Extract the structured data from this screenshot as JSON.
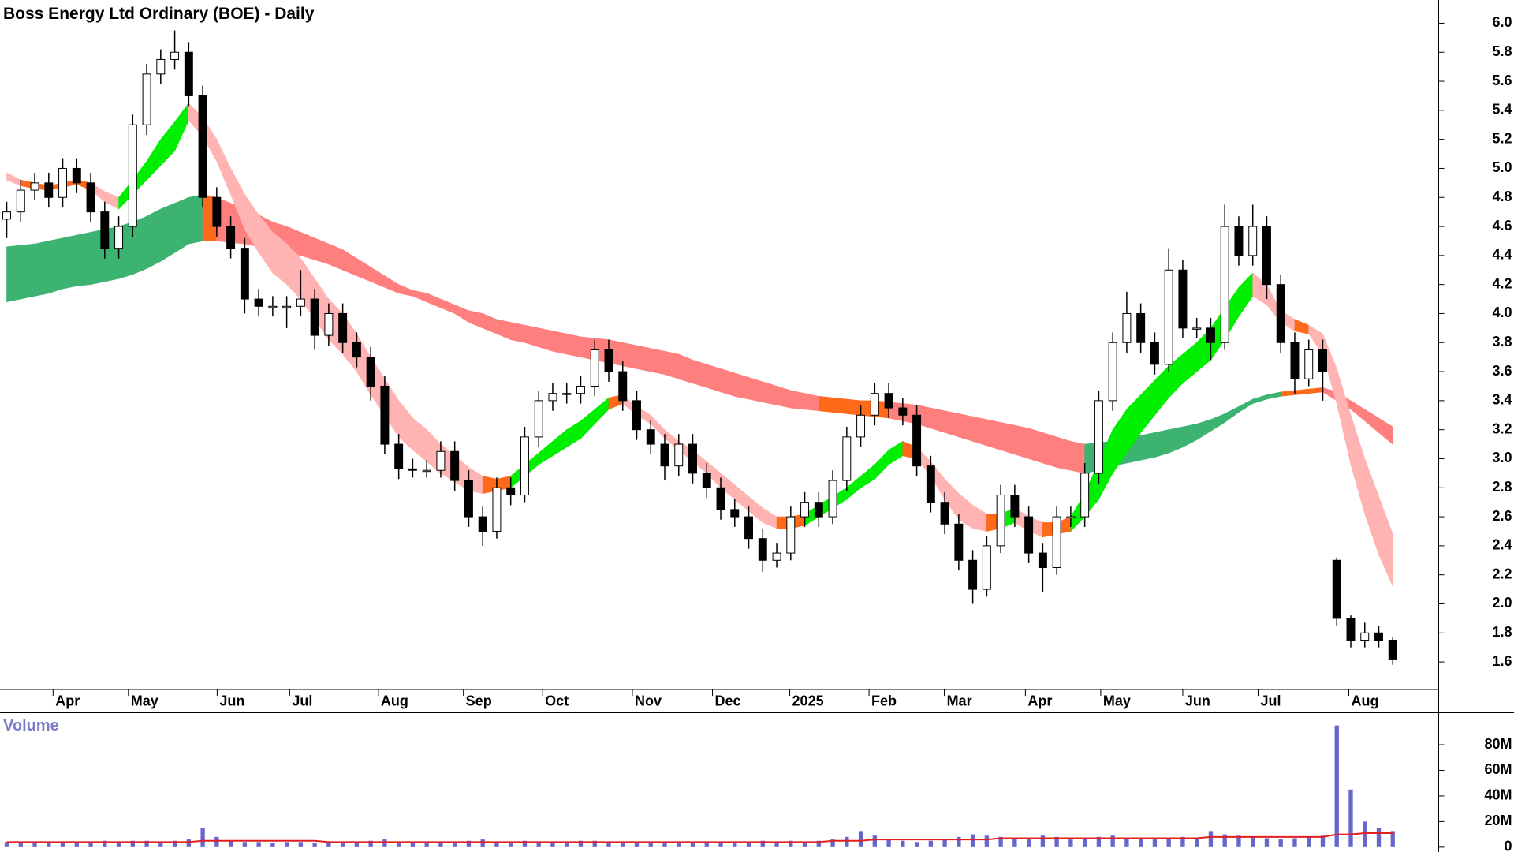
{
  "chart_data": {
    "type": "candlestick",
    "title": "Boss Energy Ltd Ordinary (BOE) - Daily",
    "volume_label": "Volume",
    "xlim": [
      -0.48,
      102.28
    ],
    "xticks": [
      {
        "value": 3.31,
        "label": "Apr"
      },
      {
        "value": 8.69,
        "label": "May"
      },
      {
        "value": 15.03,
        "label": "Jun"
      },
      {
        "value": 20.21,
        "label": "Jul"
      },
      {
        "value": 26.55,
        "label": "Aug"
      },
      {
        "value": 32.62,
        "label": "Sep"
      },
      {
        "value": 38.28,
        "label": "Oct"
      },
      {
        "value": 44.69,
        "label": "Nov"
      },
      {
        "value": 50.41,
        "label": "Dec"
      },
      {
        "value": 55.93,
        "label": "2025"
      },
      {
        "value": 61.59,
        "label": "Feb"
      },
      {
        "value": 66.97,
        "label": "Mar"
      },
      {
        "value": 72.76,
        "label": "Apr"
      },
      {
        "value": 78.14,
        "label": "May"
      },
      {
        "value": 84.0,
        "label": "Jun"
      },
      {
        "value": 89.38,
        "label": "Jul"
      },
      {
        "value": 95.86,
        "label": "Aug"
      }
    ],
    "ylim": [
      1.41,
      6.16
    ],
    "yticks": [
      {
        "value": 6,
        "label": "6.0"
      },
      5.8,
      5.6,
      5.4,
      5.2,
      {
        "value": 5,
        "label": "5.0"
      },
      4.8,
      4.6,
      4.4,
      4.2,
      {
        "value": 4,
        "label": "4.0"
      },
      3.8,
      3.6,
      3.4,
      3.2,
      {
        "value": 3,
        "label": "3.0"
      },
      2.8,
      2.6,
      2.4,
      2.2,
      {
        "value": 2,
        "label": "2.0"
      },
      1.8,
      1.6
    ],
    "vlim": [
      -3.8,
      105
    ],
    "vticks": [
      {
        "value": 80,
        "label": "80M"
      },
      {
        "value": 60,
        "label": "60M"
      },
      {
        "value": 40,
        "label": "40M"
      },
      {
        "value": 20,
        "label": "20M"
      },
      0
    ],
    "up_color": "#ffffff",
    "down_color": "#000000",
    "volume_color": "#6666cc",
    "volume_ma_color": "#e02020",
    "band_colors": {
      "short_rising": "#00ee00",
      "short_flat": "#ff6a1a",
      "short_falling": "#ffb3b3",
      "long_rising": "#3cb371",
      "long_flat": "#ff6a1a",
      "long_falling": "#ff7f7f"
    },
    "open": [
      4.65,
      4.7,
      4.85,
      4.9,
      4.8,
      5.0,
      4.9,
      4.7,
      4.45,
      4.6,
      5.3,
      5.65,
      5.75,
      5.8,
      5.5,
      4.8,
      4.6,
      4.45,
      4.1,
      4.05,
      4.05,
      4.05,
      4.1,
      3.85,
      4.0,
      3.8,
      3.7,
      3.5,
      3.1,
      2.93,
      2.92,
      2.92,
      3.05,
      2.85,
      2.6,
      2.5,
      2.8,
      2.75,
      3.15,
      3.4,
      3.45,
      3.45,
      3.5,
      3.75,
      3.6,
      3.4,
      3.2,
      3.1,
      2.95,
      3.1,
      2.9,
      2.8,
      2.65,
      2.6,
      2.45,
      2.3,
      2.35,
      2.6,
      2.7,
      2.6,
      2.85,
      3.15,
      3.3,
      3.45,
      3.35,
      3.3,
      2.95,
      2.7,
      2.55,
      2.3,
      2.1,
      2.4,
      2.75,
      2.6,
      2.35,
      2.25,
      2.6,
      2.6,
      2.9,
      3.4,
      3.8,
      4.0,
      3.8,
      3.65,
      4.3,
      3.9,
      3.9,
      3.8,
      4.6,
      4.4,
      4.6,
      4.2,
      3.8,
      3.55,
      3.75,
      2.3,
      1.9,
      1.75,
      1.8,
      1.75
    ],
    "high": [
      4.77,
      4.92,
      4.97,
      4.97,
      5.07,
      5.07,
      4.97,
      4.77,
      4.67,
      5.37,
      5.72,
      5.82,
      5.95,
      5.87,
      5.57,
      4.87,
      4.67,
      4.52,
      4.17,
      4.12,
      4.12,
      4.3,
      4.17,
      4.07,
      4.07,
      3.87,
      3.77,
      3.57,
      3.17,
      3.0,
      2.99,
      3.12,
      3.12,
      2.92,
      2.67,
      2.87,
      2.87,
      3.22,
      3.47,
      3.52,
      3.52,
      3.57,
      3.82,
      3.82,
      3.67,
      3.47,
      3.27,
      3.17,
      3.17,
      3.17,
      2.97,
      2.87,
      2.72,
      2.67,
      2.52,
      2.42,
      2.67,
      2.77,
      2.77,
      2.92,
      3.22,
      3.37,
      3.52,
      3.52,
      3.42,
      3.37,
      3.02,
      2.77,
      2.62,
      2.37,
      2.47,
      2.82,
      2.82,
      2.67,
      2.42,
      2.67,
      2.67,
      2.97,
      3.47,
      3.87,
      4.15,
      4.07,
      3.87,
      4.45,
      4.37,
      3.97,
      3.97,
      4.75,
      4.67,
      4.75,
      4.67,
      4.27,
      3.87,
      3.82,
      3.82,
      2.32,
      1.92,
      1.87,
      1.85,
      1.77
    ],
    "low": [
      4.52,
      4.63,
      4.78,
      4.73,
      4.73,
      4.83,
      4.63,
      4.38,
      4.38,
      4.53,
      5.23,
      5.58,
      5.68,
      5.43,
      4.73,
      4.53,
      4.38,
      4.0,
      3.98,
      3.98,
      3.9,
      3.98,
      3.75,
      3.78,
      3.73,
      3.63,
      3.4,
      3.03,
      2.86,
      2.87,
      2.87,
      2.87,
      2.78,
      2.53,
      2.4,
      2.45,
      2.68,
      2.7,
      3.08,
      3.33,
      3.38,
      3.38,
      3.43,
      3.53,
      3.33,
      3.13,
      3.03,
      2.85,
      2.88,
      2.83,
      2.73,
      2.58,
      2.53,
      2.38,
      2.22,
      2.25,
      2.3,
      2.53,
      2.53,
      2.55,
      2.78,
      3.08,
      3.23,
      3.28,
      3.23,
      2.88,
      2.63,
      2.48,
      2.23,
      2.0,
      2.05,
      2.35,
      2.53,
      2.28,
      2.08,
      2.2,
      2.53,
      2.53,
      2.83,
      3.33,
      3.73,
      3.73,
      3.58,
      3.6,
      3.83,
      3.83,
      3.68,
      3.75,
      4.33,
      4.33,
      4.1,
      3.73,
      3.45,
      3.5,
      3.4,
      1.85,
      1.7,
      1.7,
      1.7,
      1.58
    ],
    "close": [
      4.7,
      4.85,
      4.9,
      4.8,
      5.0,
      4.9,
      4.7,
      4.45,
      4.6,
      5.3,
      5.65,
      5.75,
      5.8,
      5.5,
      4.8,
      4.6,
      4.45,
      4.1,
      4.05,
      4.05,
      4.05,
      4.1,
      3.85,
      4.0,
      3.8,
      3.7,
      3.5,
      3.1,
      2.93,
      2.92,
      2.92,
      3.05,
      2.85,
      2.6,
      2.5,
      2.8,
      2.75,
      3.15,
      3.4,
      3.45,
      3.45,
      3.5,
      3.75,
      3.6,
      3.4,
      3.2,
      3.1,
      2.95,
      3.1,
      2.9,
      2.8,
      2.65,
      2.6,
      2.45,
      2.3,
      2.35,
      2.6,
      2.7,
      2.6,
      2.85,
      3.15,
      3.3,
      3.45,
      3.35,
      3.3,
      2.95,
      2.7,
      2.55,
      2.3,
      2.1,
      2.4,
      2.75,
      2.6,
      2.35,
      2.25,
      2.6,
      2.6,
      2.9,
      3.4,
      3.8,
      4.0,
      3.8,
      3.65,
      4.3,
      3.9,
      3.9,
      3.8,
      4.6,
      4.4,
      4.6,
      4.2,
      3.8,
      3.55,
      3.75,
      3.6,
      1.9,
      1.75,
      1.8,
      1.75,
      1.62
    ],
    "short_upper": [
      4.97,
      4.92,
      4.9,
      4.88,
      4.9,
      4.92,
      4.9,
      4.84,
      4.8,
      4.92,
      5.05,
      5.2,
      5.32,
      5.45,
      5.35,
      5.2,
      5.0,
      4.82,
      4.68,
      4.56,
      4.48,
      4.38,
      4.24,
      4.1,
      4.0,
      3.86,
      3.7,
      3.55,
      3.4,
      3.28,
      3.2,
      3.1,
      3.02,
      2.94,
      2.88,
      2.86,
      2.88,
      2.96,
      3.04,
      3.12,
      3.2,
      3.26,
      3.34,
      3.42,
      3.44,
      3.36,
      3.3,
      3.2,
      3.12,
      3.06,
      2.98,
      2.9,
      2.82,
      2.74,
      2.66,
      2.6,
      2.6,
      2.62,
      2.68,
      2.74,
      2.8,
      2.88,
      2.96,
      3.06,
      3.12,
      3.08,
      2.98,
      2.86,
      2.76,
      2.68,
      2.62,
      2.62,
      2.66,
      2.6,
      2.56,
      2.56,
      2.6,
      2.76,
      2.98,
      3.2,
      3.34,
      3.44,
      3.54,
      3.64,
      3.72,
      3.8,
      3.9,
      4.04,
      4.18,
      4.28,
      4.2,
      4.02,
      3.96,
      3.92,
      3.86,
      3.62,
      3.3,
      3.0,
      2.74,
      2.48
    ],
    "short_lower": [
      4.92,
      4.88,
      4.86,
      4.85,
      4.87,
      4.89,
      4.85,
      4.77,
      4.72,
      4.82,
      4.92,
      5.02,
      5.12,
      5.33,
      5.22,
      5.05,
      4.82,
      4.58,
      4.42,
      4.28,
      4.2,
      4.1,
      3.96,
      3.82,
      3.72,
      3.6,
      3.44,
      3.3,
      3.15,
      3.06,
      2.98,
      2.9,
      2.84,
      2.78,
      2.76,
      2.78,
      2.8,
      2.88,
      2.96,
      3.02,
      3.08,
      3.14,
      3.24,
      3.34,
      3.38,
      3.3,
      3.24,
      3.14,
      3.06,
      2.98,
      2.9,
      2.8,
      2.72,
      2.64,
      2.56,
      2.52,
      2.52,
      2.54,
      2.6,
      2.66,
      2.72,
      2.8,
      2.86,
      2.96,
      3.02,
      3.0,
      2.88,
      2.72,
      2.58,
      2.52,
      2.5,
      2.52,
      2.56,
      2.5,
      2.46,
      2.48,
      2.5,
      2.6,
      2.72,
      2.9,
      3.04,
      3.18,
      3.3,
      3.42,
      3.52,
      3.6,
      3.68,
      3.82,
      3.98,
      4.12,
      4.06,
      3.94,
      3.88,
      3.86,
      3.72,
      3.38,
      2.96,
      2.62,
      2.34,
      2.12
    ],
    "long_upper": [
      4.46,
      4.47,
      4.48,
      4.5,
      4.52,
      4.54,
      4.56,
      4.58,
      4.6,
      4.63,
      4.67,
      4.72,
      4.76,
      4.8,
      4.82,
      4.8,
      4.76,
      4.72,
      4.68,
      4.63,
      4.6,
      4.56,
      4.52,
      4.48,
      4.44,
      4.38,
      4.32,
      4.26,
      4.2,
      4.16,
      4.14,
      4.1,
      4.06,
      4.02,
      4.0,
      3.96,
      3.94,
      3.92,
      3.9,
      3.88,
      3.86,
      3.84,
      3.83,
      3.82,
      3.8,
      3.78,
      3.76,
      3.74,
      3.72,
      3.68,
      3.65,
      3.62,
      3.59,
      3.56,
      3.53,
      3.5,
      3.47,
      3.45,
      3.43,
      3.42,
      3.41,
      3.4,
      3.4,
      3.39,
      3.38,
      3.37,
      3.35,
      3.33,
      3.31,
      3.29,
      3.27,
      3.25,
      3.23,
      3.21,
      3.18,
      3.15,
      3.12,
      3.1,
      3.11,
      3.12,
      3.14,
      3.16,
      3.18,
      3.2,
      3.22,
      3.24,
      3.27,
      3.31,
      3.36,
      3.41,
      3.44,
      3.46,
      3.47,
      3.48,
      3.49,
      3.46,
      3.4,
      3.34,
      3.28,
      3.22
    ],
    "long_lower": [
      4.08,
      4.1,
      4.12,
      4.14,
      4.17,
      4.19,
      4.2,
      4.22,
      4.24,
      4.27,
      4.31,
      4.36,
      4.42,
      4.48,
      4.5,
      4.5,
      4.49,
      4.48,
      4.46,
      4.44,
      4.42,
      4.4,
      4.37,
      4.34,
      4.3,
      4.26,
      4.22,
      4.18,
      4.14,
      4.12,
      4.08,
      4.04,
      4.0,
      3.94,
      3.9,
      3.86,
      3.82,
      3.8,
      3.77,
      3.74,
      3.72,
      3.7,
      3.68,
      3.66,
      3.64,
      3.62,
      3.6,
      3.58,
      3.55,
      3.52,
      3.49,
      3.46,
      3.43,
      3.41,
      3.39,
      3.37,
      3.35,
      3.34,
      3.33,
      3.32,
      3.31,
      3.3,
      3.29,
      3.28,
      3.26,
      3.24,
      3.21,
      3.18,
      3.15,
      3.12,
      3.09,
      3.06,
      3.03,
      3.0,
      2.97,
      2.94,
      2.92,
      2.9,
      2.92,
      2.95,
      2.97,
      2.99,
      3.01,
      3.04,
      3.08,
      3.13,
      3.19,
      3.25,
      3.32,
      3.38,
      3.41,
      3.43,
      3.44,
      3.45,
      3.46,
      3.4,
      3.34,
      3.26,
      3.18,
      3.1
    ],
    "volume": [
      4,
      3,
      3,
      4,
      3,
      3,
      4,
      5,
      4,
      5,
      5,
      4,
      5,
      6,
      15,
      8,
      5,
      4,
      4,
      3,
      4,
      4,
      3,
      3,
      4,
      4,
      5,
      6,
      4,
      3,
      3,
      4,
      4,
      5,
      6,
      4,
      4,
      5,
      4,
      3,
      4,
      5,
      5,
      4,
      4,
      3,
      4,
      4,
      3,
      4,
      3,
      3,
      4,
      4,
      5,
      4,
      5,
      4,
      5,
      6,
      8,
      12,
      9,
      6,
      5,
      4,
      5,
      6,
      8,
      10,
      9,
      8,
      7,
      6,
      9,
      8,
      6,
      7,
      8,
      9,
      7,
      7,
      6,
      7,
      8,
      7,
      12,
      10,
      9,
      8,
      7,
      6,
      7,
      8,
      9,
      95,
      45,
      20,
      15,
      12
    ],
    "volume_ma": [
      4,
      4,
      4,
      4,
      4,
      4,
      4,
      4,
      4,
      4,
      4,
      4,
      4,
      4,
      5,
      5,
      5,
      5,
      5,
      5,
      5,
      5,
      5,
      4,
      4,
      4,
      4,
      4,
      4,
      4,
      4,
      4,
      4,
      4,
      4,
      4,
      4,
      4,
      4,
      4,
      4,
      4,
      4,
      4,
      4,
      4,
      4,
      4,
      4,
      4,
      4,
      4,
      4,
      4,
      4,
      4,
      4,
      4,
      4,
      5,
      5,
      5,
      6,
      6,
      6,
      6,
      6,
      6,
      6,
      6,
      6,
      7,
      7,
      7,
      7,
      7,
      7,
      7,
      7,
      7,
      7,
      7,
      7,
      7,
      7,
      7,
      8,
      8,
      8,
      8,
      8,
      8,
      8,
      8,
      8,
      10,
      10,
      11,
      11,
      11
    ]
  }
}
